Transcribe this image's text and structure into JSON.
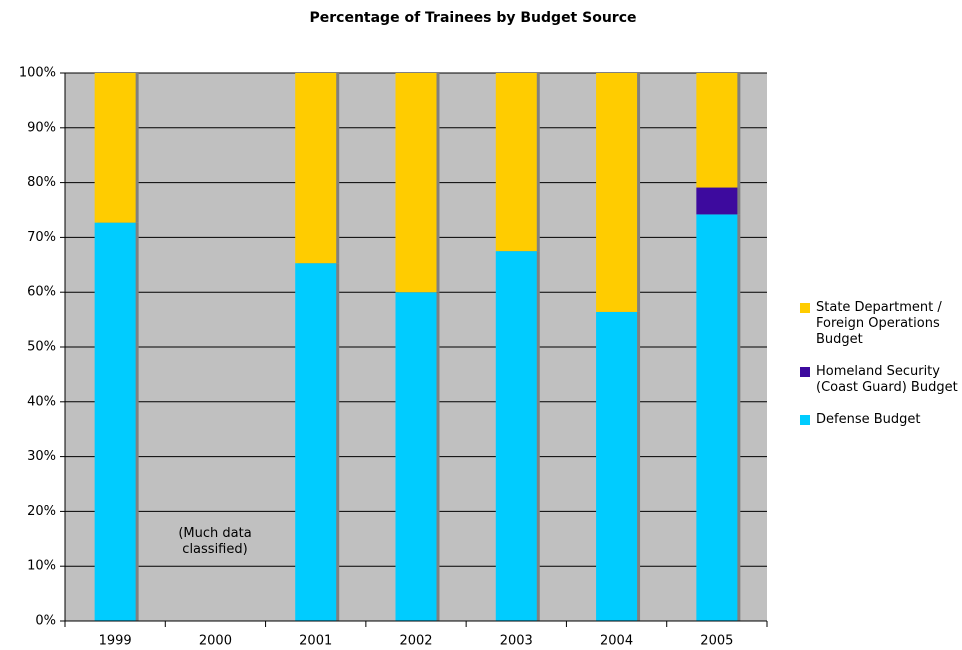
{
  "chart_data": {
    "type": "stacked_bar",
    "title": "Percentage of Trainees by Budget Source",
    "categories": [
      "1999",
      "2000",
      "2001",
      "2002",
      "2003",
      "2004",
      "2005"
    ],
    "series": [
      {
        "name": "Defense Budget",
        "color": "#00ccff",
        "values": [
          72.7,
          null,
          65.3,
          60,
          67.5,
          56.4,
          74.2
        ]
      },
      {
        "name": "Homeland Security (Coast Guard) Budget",
        "color": "#3d0a9e",
        "values": [
          null,
          null,
          null,
          null,
          null,
          null,
          4.9
        ]
      },
      {
        "name": "State Department / Foreign Operations Budget",
        "color": "#ffcc00",
        "values": [
          27.3,
          null,
          34.7,
          40,
          32.5,
          43.6,
          20.9
        ]
      }
    ],
    "annotation": "(Much data classified)",
    "ylim": [
      0,
      100
    ],
    "yticks": [
      {
        "value": 0,
        "label": "0%"
      },
      {
        "value": 10,
        "label": "10%"
      },
      {
        "value": 20,
        "label": "20%"
      },
      {
        "value": 30,
        "label": "30%"
      },
      {
        "value": 40,
        "label": "40%"
      },
      {
        "value": 50,
        "label": "50%"
      },
      {
        "value": 60,
        "label": "60%"
      },
      {
        "value": 70,
        "label": "70%"
      },
      {
        "value": 80,
        "label": "80%"
      },
      {
        "value": 90,
        "label": "90%"
      },
      {
        "value": 100,
        "label": "100%"
      }
    ],
    "grid": true,
    "legend": "right"
  }
}
